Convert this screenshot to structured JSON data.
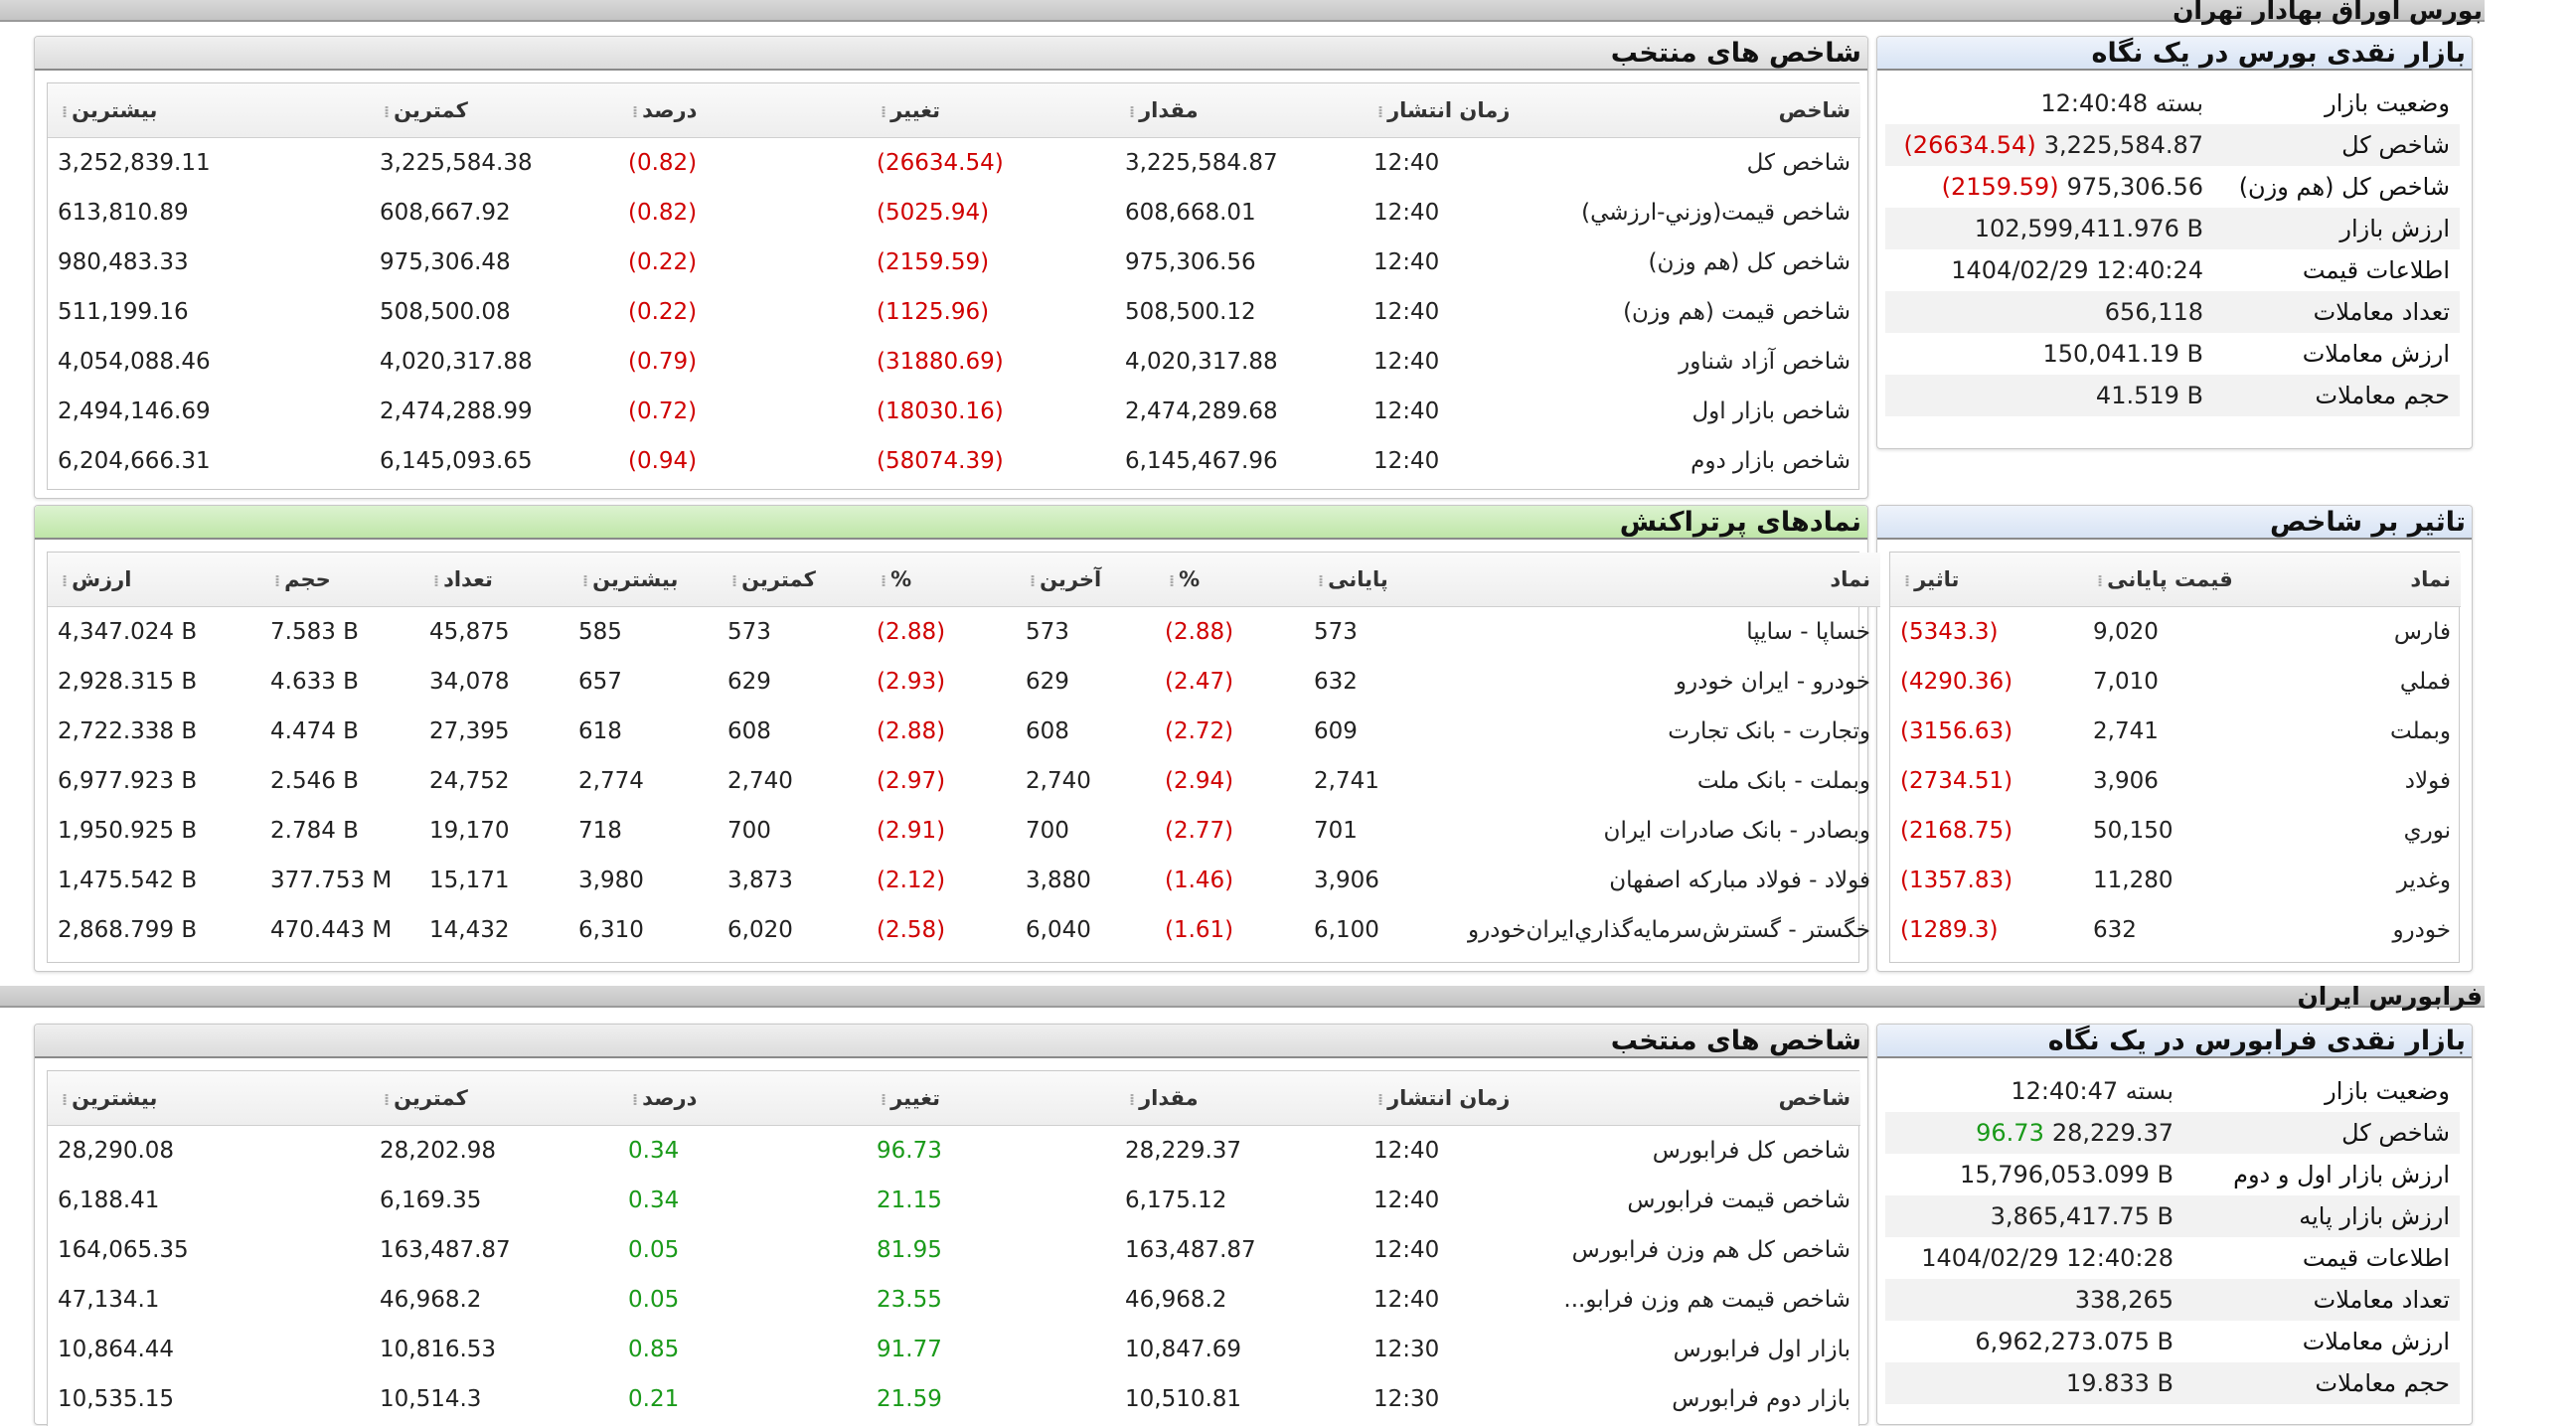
{
  "tse": {
    "section_title": "بورس اوراق بهادار تهران",
    "indices": {
      "title": "شاخص های منتخب",
      "headers": [
        "شاخص",
        "زمان انتشار",
        "مقدار",
        "تغییر",
        "درصد",
        "کمترین",
        "بیشترین"
      ],
      "rows": [
        [
          "شاخص کل",
          "12:40",
          "3,225,584.87",
          "(26634.54)",
          "(0.82)",
          "3,225,584.38",
          "3,252,839.11"
        ],
        [
          "شاخص قيمت(وزني-ارزشي)",
          "12:40",
          "608,668.01",
          "(5025.94)",
          "(0.82)",
          "608,667.92",
          "613,810.89"
        ],
        [
          "شاخص کل (هم وزن)",
          "12:40",
          "975,306.56",
          "(2159.59)",
          "(0.22)",
          "975,306.48",
          "980,483.33"
        ],
        [
          "شاخص قيمت (هم وزن)",
          "12:40",
          "508,500.12",
          "(1125.96)",
          "(0.22)",
          "508,500.08",
          "511,199.16"
        ],
        [
          "شاخص آزاد شناور",
          "12:40",
          "4,020,317.88",
          "(31880.69)",
          "(0.79)",
          "4,020,317.88",
          "4,054,088.46"
        ],
        [
          "شاخص بازار اول",
          "12:40",
          "2,474,289.68",
          "(18030.16)",
          "(0.72)",
          "2,474,288.99",
          "2,494,146.69"
        ],
        [
          "شاخص بازار دوم",
          "12:40",
          "6,145,467.96",
          "(58074.39)",
          "(0.94)",
          "6,145,093.65",
          "6,204,666.31"
        ]
      ]
    },
    "glance": {
      "title": "بازار نقدی بورس در یک نگاه",
      "rows": [
        {
          "label": "وضعیت بازار",
          "value": "بسته 12:40:48",
          "change": ""
        },
        {
          "label": "شاخص کل",
          "value": "3,225,584.87",
          "change": "(26634.54)"
        },
        {
          "label": "شاخص کل (هم وزن)",
          "value": "975,306.56",
          "change": "(2159.59)"
        },
        {
          "label": "ارزش بازار",
          "value": "102,599,411.976 B",
          "change": ""
        },
        {
          "label": "اطلاعات قیمت",
          "value": "1404/02/29 12:40:24",
          "change": ""
        },
        {
          "label": "تعداد معاملات",
          "value": "656,118",
          "change": ""
        },
        {
          "label": "ارزش معاملات",
          "value": "150,041.19 B",
          "change": ""
        },
        {
          "label": "حجم معاملات",
          "value": "41.519 B",
          "change": ""
        }
      ]
    },
    "active": {
      "title": "نمادهای پرتراکنش",
      "headers": [
        "نماد",
        "پایانی",
        "%",
        "آخرین",
        "%",
        "کمترین",
        "بیشترین",
        "تعداد",
        "حجم",
        "ارزش"
      ],
      "rows": [
        [
          "خساپا - سايپا",
          "573",
          "(2.88)",
          "573",
          "(2.88)",
          "573",
          "585",
          "45,875",
          "7.583 B",
          "4,347.024 B"
        ],
        [
          "خودرو - ايران خودرو",
          "632",
          "(2.47)",
          "629",
          "(2.93)",
          "629",
          "657",
          "34,078",
          "4.633 B",
          "2,928.315 B"
        ],
        [
          "وتجارت - بانک تجارت",
          "609",
          "(2.72)",
          "608",
          "(2.88)",
          "608",
          "618",
          "27,395",
          "4.474 B",
          "2,722.338 B"
        ],
        [
          "وبملت - بانک ملت",
          "2,741",
          "(2.94)",
          "2,740",
          "(2.97)",
          "2,740",
          "2,774",
          "24,752",
          "2.546 B",
          "6,977.923 B"
        ],
        [
          "وبصادر - بانک صادرات ايران",
          "701",
          "(2.77)",
          "700",
          "(2.91)",
          "700",
          "718",
          "19,170",
          "2.784 B",
          "1,950.925 B"
        ],
        [
          "فولاد - فولاد مبارکه اصفهان",
          "3,906",
          "(1.46)",
          "3,880",
          "(2.12)",
          "3,873",
          "3,980",
          "15,171",
          "377.753 M",
          "1,475.542 B"
        ],
        [
          "خگستر - گسترش‌سرمايه‌گذاري‌ايران‌خودرو",
          "6,100",
          "(1.61)",
          "6,040",
          "(2.58)",
          "6,020",
          "6,310",
          "14,432",
          "470.443 M",
          "2,868.799 B"
        ]
      ]
    },
    "impact": {
      "title": "تاثیر بر شاخص",
      "headers": [
        "نماد",
        "قیمت پایانی",
        "تاثیر"
      ],
      "rows": [
        [
          "فارس",
          "9,020",
          "(5343.3)"
        ],
        [
          "فملي",
          "7,010",
          "(4290.36)"
        ],
        [
          "وبملت",
          "2,741",
          "(3156.63)"
        ],
        [
          "فولاد",
          "3,906",
          "(2734.51)"
        ],
        [
          "نوري",
          "50,150",
          "(2168.75)"
        ],
        [
          "وغدير",
          "11,280",
          "(1357.83)"
        ],
        [
          "خودرو",
          "632",
          "(1289.3)"
        ]
      ]
    }
  },
  "ifb": {
    "section_title": "فرابورس ایران",
    "indices": {
      "title": "شاخص های منتخب",
      "headers": [
        "شاخص",
        "زمان انتشار",
        "مقدار",
        "تغییر",
        "درصد",
        "کمترین",
        "بیشترین"
      ],
      "rows": [
        [
          "شاخص کل فرابورس",
          "12:40",
          "28,229.37",
          "96.73",
          "0.34",
          "28,202.98",
          "28,290.08"
        ],
        [
          "شاخص قیمت فرابورس",
          "12:40",
          "6,175.12",
          "21.15",
          "0.34",
          "6,169.35",
          "6,188.41"
        ],
        [
          "شاخص کل هم وزن فرابورس",
          "12:40",
          "163,487.87",
          "81.95",
          "0.05",
          "163,487.87",
          "164,065.35"
        ],
        [
          "شاخص قیمت هم وزن فرابو...",
          "12:40",
          "46,968.2",
          "23.55",
          "0.05",
          "46,968.2",
          "47,134.1"
        ],
        [
          "بازار اول فرابورس",
          "12:30",
          "10,847.69",
          "91.77",
          "0.85",
          "10,816.53",
          "10,864.44"
        ],
        [
          "بازار دوم فرابورس",
          "12:30",
          "10,510.81",
          "21.59",
          "0.21",
          "10,514.3",
          "10,535.15"
        ]
      ]
    },
    "glance": {
      "title": "بازار نقدی فرابورس در یک نگاه",
      "rows": [
        {
          "label": "وضعیت بازار",
          "value": "بسته 12:40:47",
          "change": ""
        },
        {
          "label": "شاخص کل",
          "value": "28,229.37",
          "change": "96.73"
        },
        {
          "label": "ارزش بازار اول و دوم",
          "value": "15,796,053.099 B",
          "change": ""
        },
        {
          "label": "ارزش بازار پایه",
          "value": "3,865,417.75 B",
          "change": ""
        },
        {
          "label": "اطلاعات قیمت",
          "value": "1404/02/29 12:40:28",
          "change": ""
        },
        {
          "label": "تعداد معاملات",
          "value": "338,265",
          "change": ""
        },
        {
          "label": "ارزش معاملات",
          "value": "6,962,273.075 B",
          "change": ""
        },
        {
          "label": "حجم معاملات",
          "value": "19.833 B",
          "change": ""
        }
      ]
    }
  },
  "colors": {
    "negative": "#d00000",
    "positive": "#1a9a1a"
  }
}
